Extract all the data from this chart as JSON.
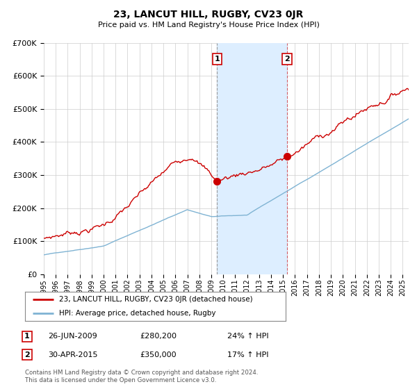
{
  "title": "23, LANCUT HILL, RUGBY, CV23 0JR",
  "subtitle": "Price paid vs. HM Land Registry's House Price Index (HPI)",
  "legend_line1": "23, LANCUT HILL, RUGBY, CV23 0JR (detached house)",
  "legend_line2": "HPI: Average price, detached house, Rugby",
  "annotation1_date": "26-JUN-2009",
  "annotation1_price": "£280,200",
  "annotation1_hpi": "24% ↑ HPI",
  "annotation2_date": "30-APR-2015",
  "annotation2_price": "£350,000",
  "annotation2_hpi": "17% ↑ HPI",
  "footer": "Contains HM Land Registry data © Crown copyright and database right 2024.\nThis data is licensed under the Open Government Licence v3.0.",
  "red_color": "#cc0000",
  "blue_color": "#7fb3d3",
  "shading_color": "#ddeeff",
  "grid_color": "#cccccc",
  "bg_color": "#ffffff",
  "ylim": [
    0,
    700000
  ],
  "yticks": [
    0,
    100000,
    200000,
    300000,
    400000,
    500000,
    600000,
    700000
  ],
  "ytick_labels": [
    "£0",
    "£100K",
    "£200K",
    "£300K",
    "£400K",
    "£500K",
    "£600K",
    "£700K"
  ],
  "xstart_year": 1995,
  "xend_year": 2025,
  "event1_year": 2009.48,
  "event2_year": 2015.33,
  "event1_price": 280200,
  "event2_price": 350000
}
